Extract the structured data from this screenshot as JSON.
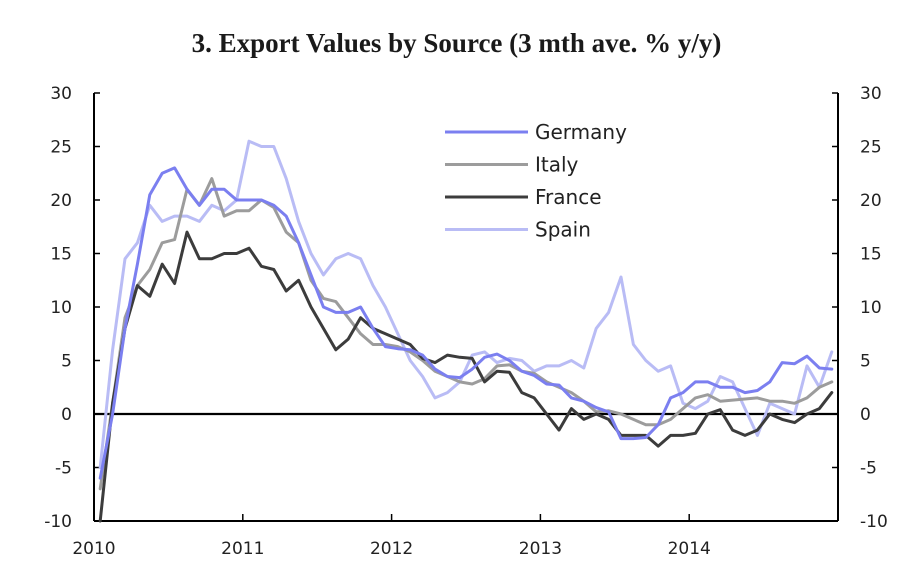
{
  "chart_data": {
    "type": "line",
    "title": "3. Export Values by Source (3 mth ave. % y/y)",
    "xlabel": "",
    "ylabel": "",
    "ylim": [
      -10,
      30
    ],
    "xlim": [
      2010.0,
      2015.0
    ],
    "y_ticks": [
      "30",
      "25",
      "20",
      "15",
      "10",
      "5",
      "0",
      "-5",
      "-10"
    ],
    "x_ticks": [
      "2010",
      "2011",
      "2012",
      "2013",
      "2014"
    ],
    "grid": false,
    "zero_line": true,
    "legend_position": "top-center",
    "x_dates": [
      "2010-01",
      "2010-02",
      "2010-03",
      "2010-04",
      "2010-05",
      "2010-06",
      "2010-07",
      "2010-08",
      "2010-09",
      "2010-10",
      "2010-11",
      "2010-12",
      "2011-01",
      "2011-02",
      "2011-03",
      "2011-04",
      "2011-05",
      "2011-06",
      "2011-07",
      "2011-08",
      "2011-09",
      "2011-10",
      "2011-11",
      "2011-12",
      "2012-01",
      "2012-02",
      "2012-03",
      "2012-04",
      "2012-05",
      "2012-06",
      "2012-07",
      "2012-08",
      "2012-09",
      "2012-10",
      "2012-11",
      "2012-12",
      "2013-01",
      "2013-02",
      "2013-03",
      "2013-04",
      "2013-05",
      "2013-06",
      "2013-07",
      "2013-08",
      "2013-09",
      "2013-10",
      "2013-11",
      "2013-12",
      "2014-01",
      "2014-02",
      "2014-03",
      "2014-04",
      "2014-05",
      "2014-06",
      "2014-07",
      "2014-08",
      "2014-09",
      "2014-10",
      "2014-11",
      "2014-12"
    ],
    "series": [
      {
        "name": "Germany",
        "color": "#7b7ff0",
        "values": [
          -6,
          0,
          8,
          14,
          20.5,
          22.5,
          23,
          21,
          19.5,
          21,
          21,
          20,
          20,
          20,
          19.5,
          18.5,
          16,
          13,
          10,
          9.5,
          9.5,
          10,
          8,
          6.3,
          6.1,
          6,
          5.5,
          4.2,
          3.5,
          3.4,
          4.2,
          5.3,
          5.6,
          5,
          4,
          3.6,
          2.8,
          2.7,
          1.5,
          1.2,
          0.6,
          0.2,
          -2.3,
          -2.3,
          -2.2,
          -1,
          1.5,
          2,
          3,
          3,
          2.5,
          2.5,
          2,
          2.2,
          3,
          4.8,
          4.7,
          5.4,
          4.3,
          4.2
        ]
      },
      {
        "name": "Italy",
        "color": "#9c9c9c",
        "values": [
          -7,
          1,
          9,
          12,
          13.5,
          16,
          16.3,
          21,
          19.5,
          22,
          18.5,
          19,
          19,
          20,
          19.3,
          17,
          16,
          12.5,
          10.8,
          10.5,
          9,
          7.5,
          6.5,
          6.5,
          6.3,
          5.8,
          5,
          4,
          3.5,
          3,
          2.8,
          3.3,
          4.5,
          4.6,
          4,
          3.8,
          3,
          2.5,
          2,
          1.2,
          0.2,
          0.3,
          0,
          -0.5,
          -1,
          -1,
          -0.5,
          0.5,
          1.5,
          1.8,
          1.2,
          1.3,
          1.4,
          1.5,
          1.2,
          1.2,
          1,
          1.5,
          2.5,
          3
        ]
      },
      {
        "name": "France",
        "color": "#3c3c3c",
        "values": [
          -10,
          1,
          8,
          12,
          11,
          14,
          12.2,
          17,
          14.5,
          14.5,
          15,
          15,
          15.5,
          13.8,
          13.5,
          11.5,
          12.5,
          10,
          8,
          6,
          7,
          9,
          8,
          7.5,
          7,
          6.5,
          5.2,
          4.8,
          5.5,
          5.3,
          5.2,
          3,
          4,
          3.9,
          2,
          1.5,
          0,
          -1.5,
          0.5,
          -0.5,
          0,
          -0.5,
          -2,
          -2,
          -2,
          -3,
          -2,
          -2,
          -1.8,
          0,
          0.4,
          -1.5,
          -2,
          -1.5,
          0,
          -0.5,
          -0.8,
          0,
          0.5,
          2
        ]
      },
      {
        "name": "Spain",
        "color": "#b9bcf5",
        "values": [
          -5,
          6,
          14.5,
          16,
          19.5,
          18,
          18.5,
          18.5,
          18,
          19.5,
          19,
          20,
          25.5,
          25,
          25,
          22,
          18,
          15,
          13,
          14.5,
          15,
          14.5,
          12,
          10,
          7.5,
          5,
          3.5,
          1.5,
          2,
          3,
          5.5,
          5.8,
          4.8,
          5.2,
          5,
          4,
          4.5,
          4.5,
          5,
          4.3,
          8,
          9.5,
          12.8,
          6.5,
          5,
          4,
          4.5,
          1,
          0.5,
          1.2,
          3.5,
          3,
          0.5,
          -2,
          1,
          0.5,
          0,
          4.5,
          2.5,
          5.8
        ]
      }
    ]
  }
}
